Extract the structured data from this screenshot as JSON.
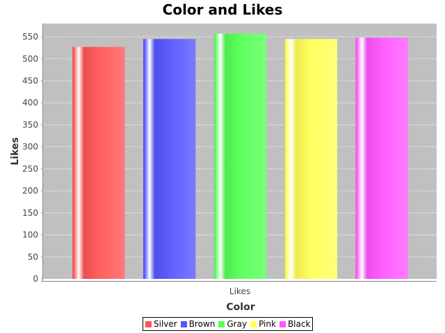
{
  "chart_data": {
    "type": "bar",
    "title": "Color and Likes",
    "xlabel": "Color",
    "ylabel": "Likes",
    "categories": [
      "Likes"
    ],
    "series": [
      {
        "name": "Silver",
        "values": [
          527
        ],
        "color": "#ff5555"
      },
      {
        "name": "Brown",
        "values": [
          545
        ],
        "color": "#5555ff"
      },
      {
        "name": "Gray",
        "values": [
          557
        ],
        "color": "#55ff55"
      },
      {
        "name": "Pink",
        "values": [
          545
        ],
        "color": "#ffff55"
      },
      {
        "name": "Black",
        "values": [
          548
        ],
        "color": "#ff55ff"
      }
    ],
    "ylim": [
      0,
      580
    ],
    "yticks": [
      0,
      50,
      100,
      150,
      200,
      250,
      300,
      350,
      400,
      450,
      500,
      550
    ],
    "grid": true,
    "legend_position": "bottom",
    "plot_background": "#c0c0c0",
    "grid_color": "#ffffff"
  }
}
